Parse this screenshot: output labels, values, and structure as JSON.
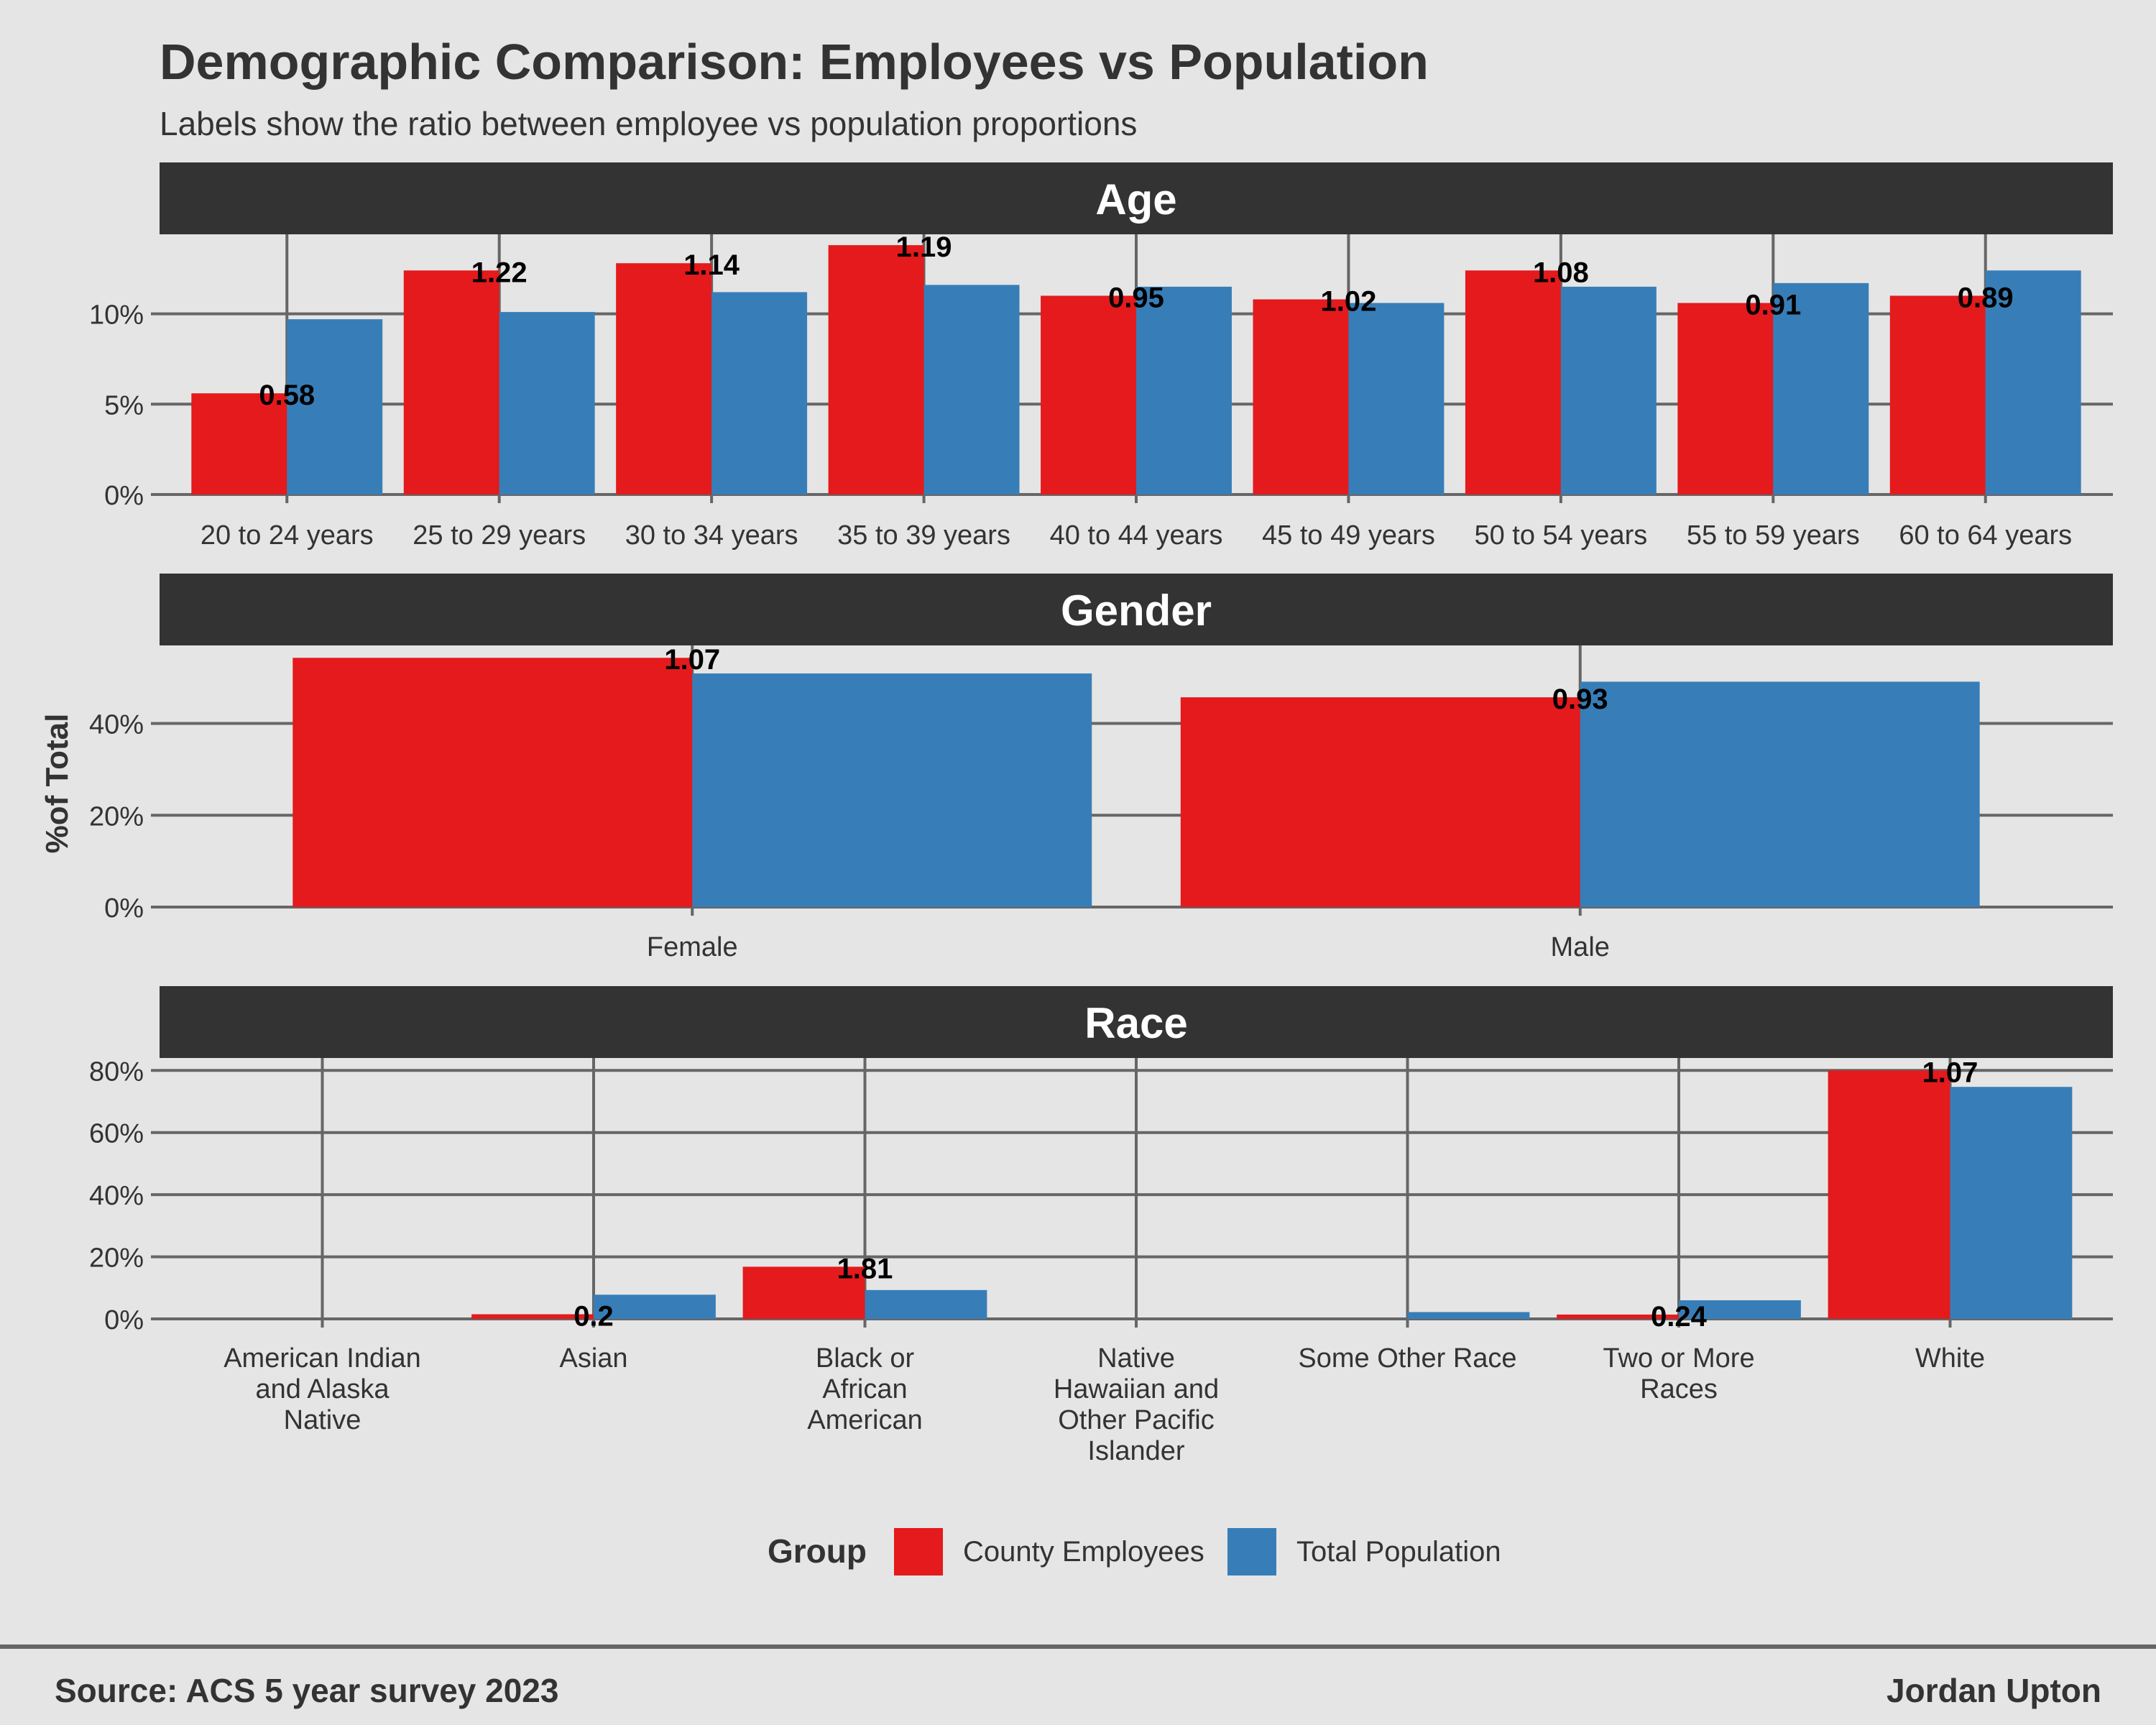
{
  "title": "Demographic Comparison: Employees vs Population",
  "subtitle": "Labels show the ratio between employee vs population proportions",
  "ylabel": "%of Total",
  "legend": {
    "title": "Group",
    "entries": [
      "County Employees",
      "Total Population"
    ],
    "placement": "bottom"
  },
  "caption_left": "Source: ACS 5 year survey 2023",
  "caption_right": "Jordan Upton",
  "colors": {
    "background": "#e5e5e5",
    "strip": "#333333",
    "grid": "#666666",
    "employees": "#e41a1c",
    "population": "#377eb8"
  },
  "chart_data": [
    {
      "type": "bar",
      "facet": "Age",
      "categories": [
        "20 to 24 years",
        "25 to 29 years",
        "30 to 34 years",
        "35 to 39 years",
        "40 to 44 years",
        "45 to 49 years",
        "50 to 54 years",
        "55 to 59 years",
        "60 to 64 years"
      ],
      "series": [
        {
          "name": "County Employees",
          "values": [
            5.6,
            12.4,
            12.8,
            13.8,
            11.0,
            10.8,
            12.4,
            10.6,
            11.0
          ]
        },
        {
          "name": "Total Population",
          "values": [
            9.7,
            10.1,
            11.2,
            11.6,
            11.5,
            10.6,
            11.5,
            11.7,
            12.4
          ]
        }
      ],
      "ratios": [
        "0.58",
        "1.22",
        "1.14",
        "1.19",
        "0.95",
        "1.02",
        "1.08",
        "0.91",
        "0.89"
      ],
      "yticks": [
        0,
        5,
        10
      ],
      "ytick_labels": [
        "0%",
        "5%",
        "10%"
      ],
      "ylim": [
        0,
        14.4
      ]
    },
    {
      "type": "bar",
      "facet": "Gender",
      "categories": [
        "Female",
        "Male"
      ],
      "series": [
        {
          "name": "County Employees",
          "values": [
            54.3,
            45.7
          ]
        },
        {
          "name": "Total Population",
          "values": [
            50.9,
            49.1
          ]
        }
      ],
      "ratios": [
        "1.07",
        "0.93"
      ],
      "yticks": [
        0,
        20,
        40
      ],
      "ytick_labels": [
        "0%",
        "20%",
        "40%"
      ],
      "ylim": [
        0,
        57
      ]
    },
    {
      "type": "bar",
      "facet": "Race",
      "categories": [
        "American Indian and Alaska Native",
        "Asian",
        "Black or African American",
        "Native Hawaiian and Other Pacific Islander",
        "Some Other Race",
        "Two or More Races",
        "White"
      ],
      "category_lines": [
        [
          "American Indian",
          "and Alaska",
          "Native"
        ],
        [
          "Asian"
        ],
        [
          "Black or",
          "African",
          "American"
        ],
        [
          "Native",
          "Hawaiian and",
          "Other Pacific",
          "Islander"
        ],
        [
          "Some Other Race"
        ],
        [
          "Two or More",
          "Races"
        ],
        [
          "White"
        ]
      ],
      "series": [
        {
          "name": "County Employees",
          "values": [
            0,
            1.5,
            16.8,
            0,
            0,
            1.4,
            80.0
          ]
        },
        {
          "name": "Total Population",
          "values": [
            0,
            7.8,
            9.3,
            0,
            2.2,
            6.0,
            74.7
          ]
        }
      ],
      "ratios": [
        "",
        "0.2",
        "1.81",
        "",
        "",
        "0.24",
        "1.07"
      ],
      "yticks": [
        0,
        20,
        40,
        60,
        80
      ],
      "ytick_labels": [
        "0%",
        "20%",
        "40%",
        "60%",
        "80%"
      ],
      "ylim": [
        0,
        84
      ]
    }
  ]
}
